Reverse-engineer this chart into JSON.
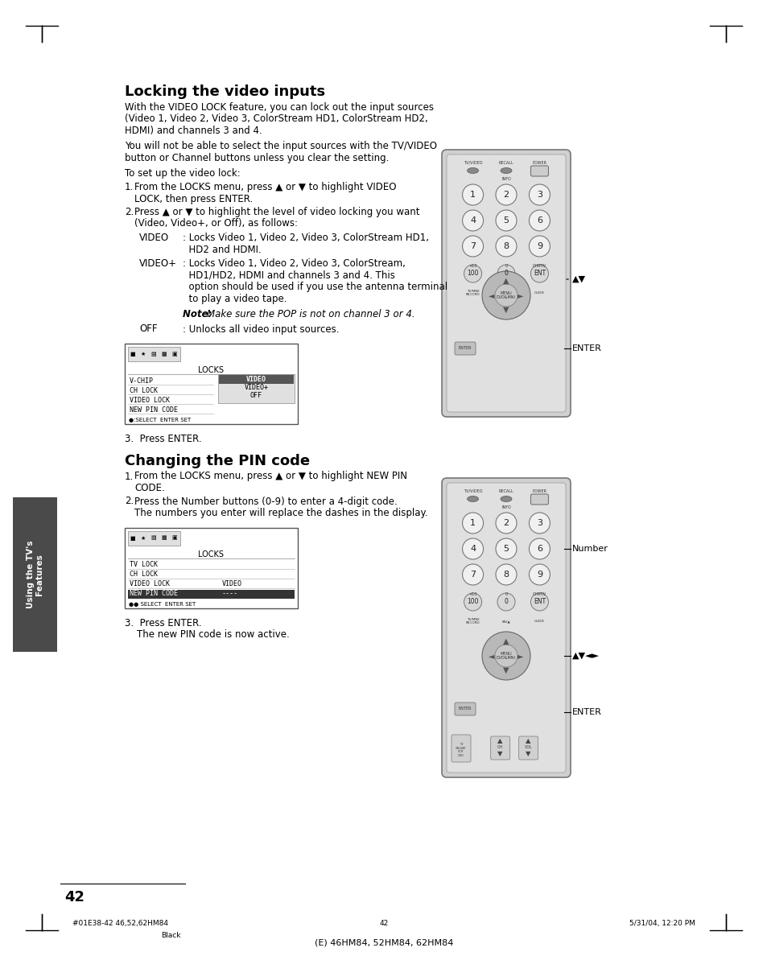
{
  "page_bg": "#ffffff",
  "sidebar_bg": "#4a4a4a",
  "sidebar_text": "Using the TV's\nFeatures",
  "sidebar_text_color": "#ffffff",
  "page_number": "42",
  "footer_left": "#01E38-42 46,52,62HM84",
  "footer_center": "42",
  "footer_right": "5/31/04, 12:20 PM",
  "footer_bottom": "(E) 46HM84, 52HM84, 62HM84",
  "footer_bottom2": "Black",
  "section1_title": "Locking the video inputs",
  "section2_title": "Changing the PIN code",
  "step3_1": "3.  Press ENTER.",
  "step3_2_line1": "3.  Press ENTER.",
  "step3_2_line2": "    The new PIN code is now active.",
  "enter_label_1": "ENTER",
  "av_label_1": "▲▼",
  "enter_label_2": "ENTER",
  "av_label_2": "▲▼◄►",
  "number_label": "Number",
  "remote_body_color": "#d8d8d8",
  "remote_border_color": "#888888",
  "remote_top_color": "#c8c8c8",
  "remote_btn_color": "#e8e8e8",
  "remote_btn_num_color": "#b0b0b0",
  "remote_dpad_color": "#b0b0b0",
  "remote_dpad_center_color": "#d0d0d0"
}
